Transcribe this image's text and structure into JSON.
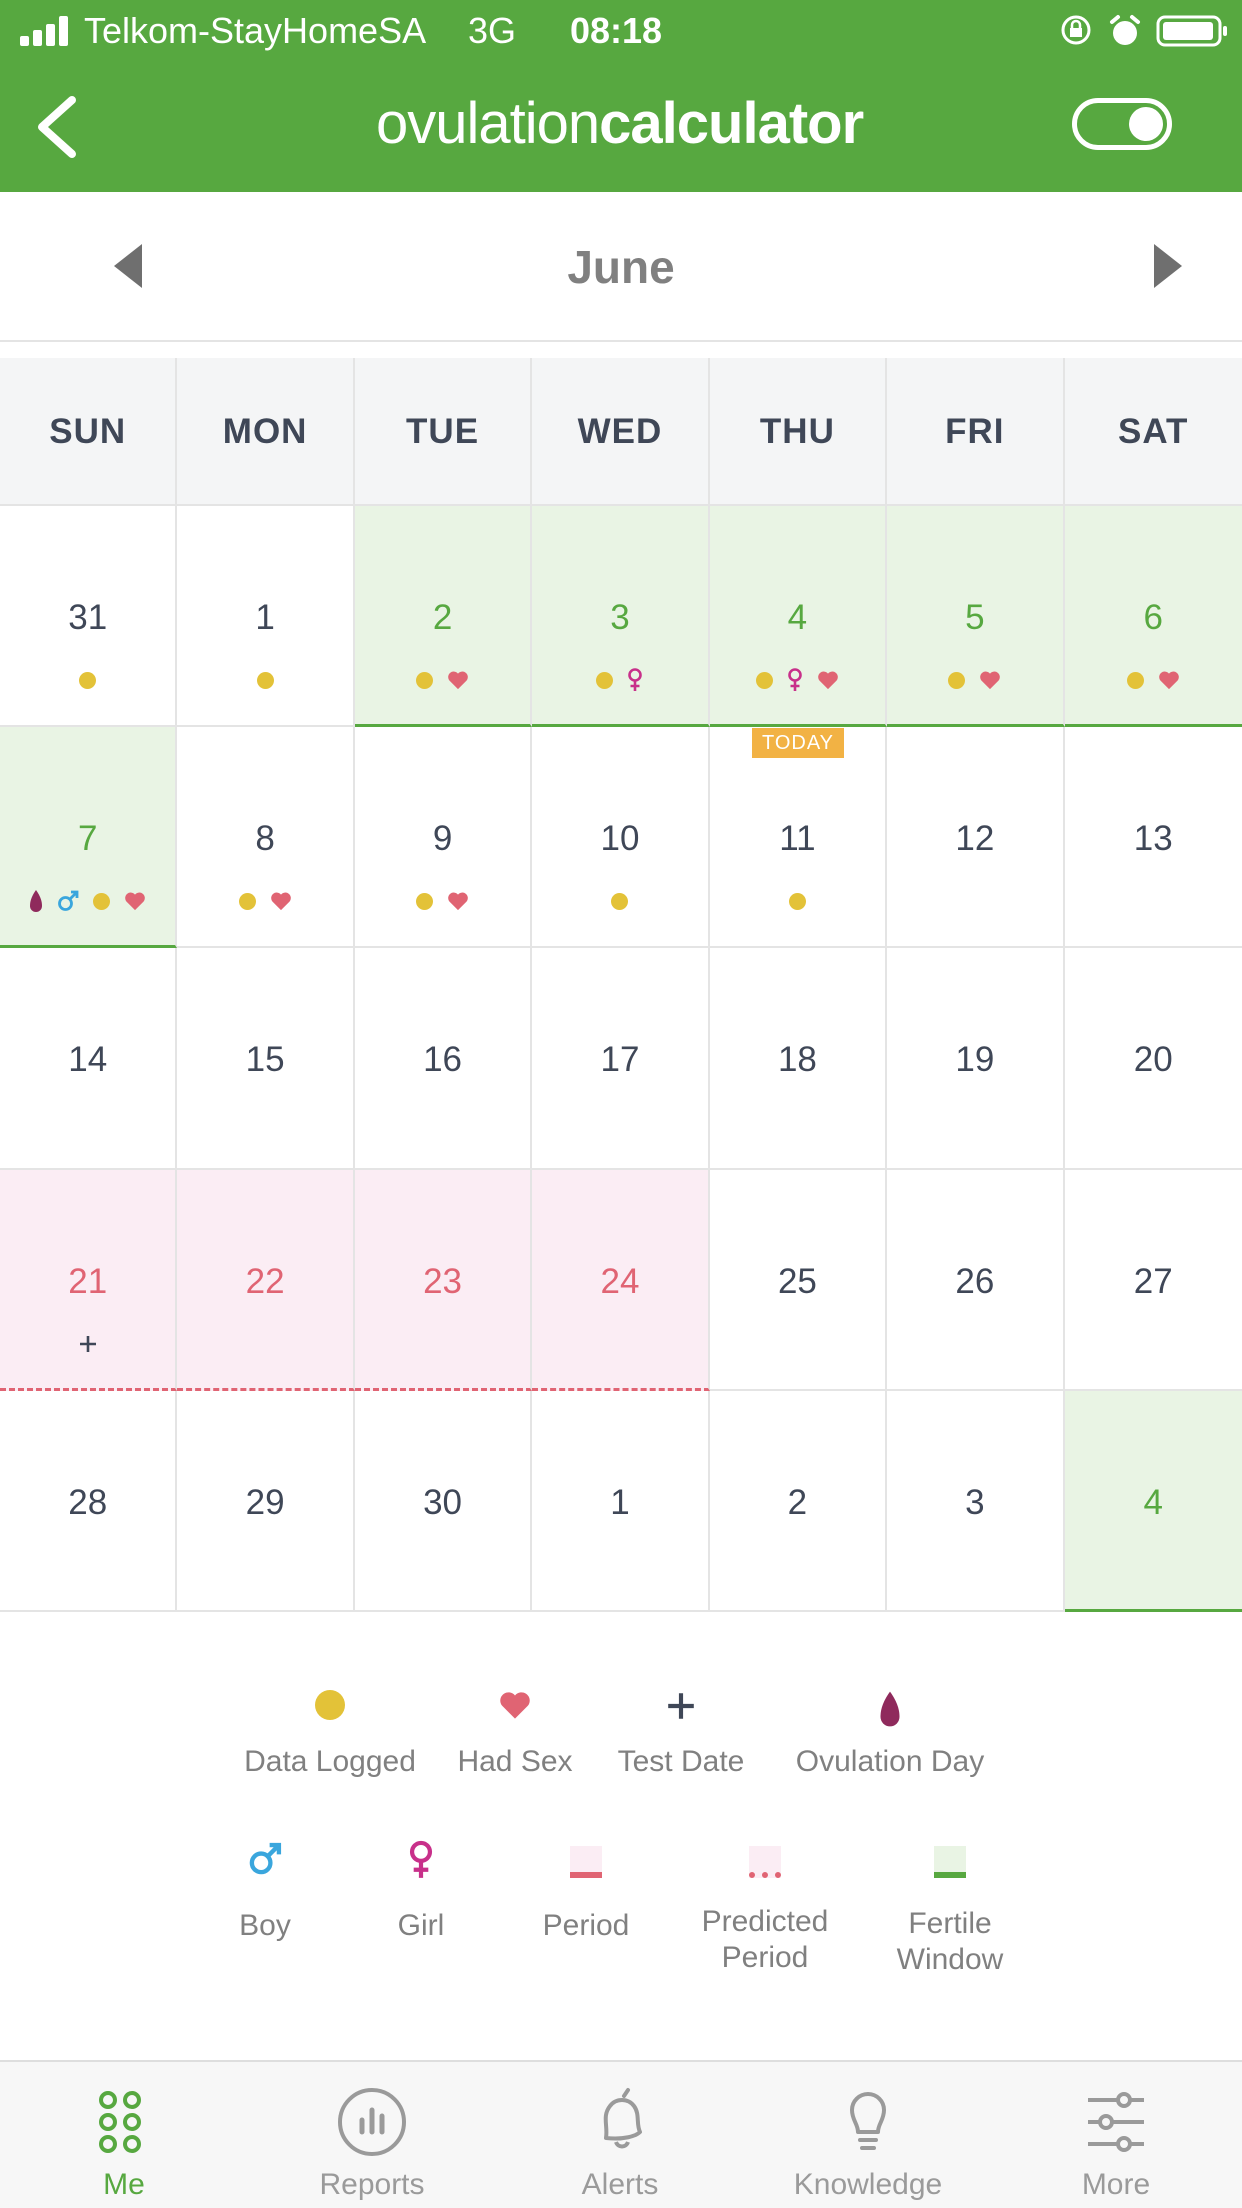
{
  "status_bar": {
    "carrier": "Telkom-StayHomeSA",
    "network": "3G",
    "time": "08:18"
  },
  "nav": {
    "logo_light": "ovulation",
    "logo_bold": "calculator"
  },
  "calendar": {
    "month": "June",
    "weekdays": [
      "SUN",
      "MON",
      "TUE",
      "WED",
      "THU",
      "FRI",
      "SAT"
    ],
    "today_label": "TODAY",
    "weeks": [
      [
        {
          "day": "31",
          "type": "normal",
          "marks": [
            "dot"
          ]
        },
        {
          "day": "1",
          "type": "normal",
          "marks": [
            "dot"
          ]
        },
        {
          "day": "2",
          "type": "fertile",
          "marks": [
            "dot",
            "heart"
          ]
        },
        {
          "day": "3",
          "type": "fertile",
          "marks": [
            "dot",
            "girl"
          ]
        },
        {
          "day": "4",
          "type": "fertile",
          "marks": [
            "dot",
            "girl",
            "heart"
          ]
        },
        {
          "day": "5",
          "type": "fertile",
          "marks": [
            "dot",
            "heart"
          ]
        },
        {
          "day": "6",
          "type": "fertile",
          "marks": [
            "dot",
            "heart"
          ]
        }
      ],
      [
        {
          "day": "7",
          "type": "fertile",
          "marks": [
            "ovulation",
            "boy",
            "dot",
            "heart"
          ]
        },
        {
          "day": "8",
          "type": "normal",
          "marks": [
            "dot",
            "heart"
          ]
        },
        {
          "day": "9",
          "type": "normal",
          "marks": [
            "dot",
            "heart"
          ]
        },
        {
          "day": "10",
          "type": "normal",
          "marks": [
            "dot"
          ]
        },
        {
          "day": "11",
          "type": "normal",
          "marks": [
            "dot"
          ],
          "today": true
        },
        {
          "day": "12",
          "type": "normal",
          "marks": []
        },
        {
          "day": "13",
          "type": "normal",
          "marks": []
        }
      ],
      [
        {
          "day": "14",
          "type": "normal",
          "marks": []
        },
        {
          "day": "15",
          "type": "normal",
          "marks": []
        },
        {
          "day": "16",
          "type": "normal",
          "marks": []
        },
        {
          "day": "17",
          "type": "normal",
          "marks": []
        },
        {
          "day": "18",
          "type": "normal",
          "marks": []
        },
        {
          "day": "19",
          "type": "normal",
          "marks": []
        },
        {
          "day": "20",
          "type": "normal",
          "marks": []
        }
      ],
      [
        {
          "day": "21",
          "type": "predicted",
          "marks": [
            "test"
          ]
        },
        {
          "day": "22",
          "type": "predicted",
          "marks": []
        },
        {
          "day": "23",
          "type": "predicted",
          "marks": []
        },
        {
          "day": "24",
          "type": "predicted",
          "marks": []
        },
        {
          "day": "25",
          "type": "normal",
          "marks": []
        },
        {
          "day": "26",
          "type": "normal",
          "marks": []
        },
        {
          "day": "27",
          "type": "normal",
          "marks": []
        }
      ],
      [
        {
          "day": "28",
          "type": "normal",
          "marks": []
        },
        {
          "day": "29",
          "type": "normal",
          "marks": []
        },
        {
          "day": "30",
          "type": "normal",
          "marks": []
        },
        {
          "day": "1",
          "type": "normal",
          "marks": []
        },
        {
          "day": "2",
          "type": "normal",
          "marks": []
        },
        {
          "day": "3",
          "type": "normal",
          "marks": []
        },
        {
          "day": "4",
          "type": "fertile",
          "marks": []
        }
      ]
    ]
  },
  "legend": {
    "data_logged": "Data Logged",
    "had_sex": "Had Sex",
    "test_date": "Test Date",
    "ovulation_day": "Ovulation Day",
    "boy": "Boy",
    "girl": "Girl",
    "period": "Period",
    "predicted_period_l1": "Predicted",
    "predicted_period_l2": "Period",
    "fertile_window_l1": "Fertile",
    "fertile_window_l2": "Window"
  },
  "tabs": [
    {
      "label": "Me",
      "icon": "grid-dots-icon",
      "active": true
    },
    {
      "label": "Reports",
      "icon": "bar-chart-icon",
      "active": false
    },
    {
      "label": "Alerts",
      "icon": "bell-icon",
      "active": false
    },
    {
      "label": "Knowledge",
      "icon": "lightbulb-icon",
      "active": false
    },
    {
      "label": "More",
      "icon": "sliders-icon",
      "active": false
    }
  ],
  "colors": {
    "brand_green": "#57a840",
    "fertile_bg": "#e9f4e4",
    "predicted_bg": "#fbedf4",
    "period_red": "#e06473",
    "dot_yellow": "#e3c238",
    "today_orange": "#f2b244",
    "ovulation_purple": "#8f2a5c",
    "boy_blue": "#3aa6dd",
    "girl_magenta": "#c8308a"
  }
}
